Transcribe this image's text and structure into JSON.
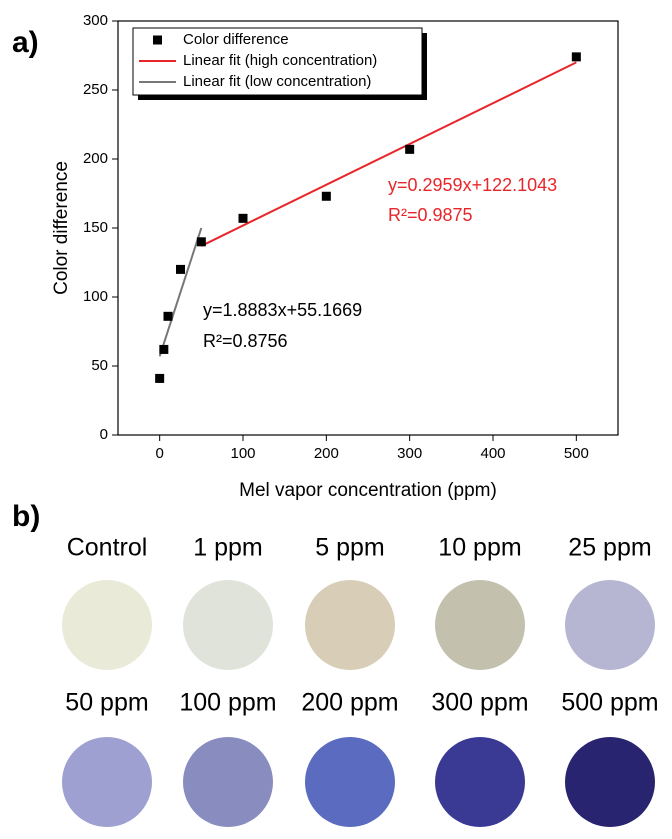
{
  "panel_labels": [
    "a)",
    "b)"
  ],
  "chart_data": {
    "type": "scatter",
    "x_label": "Mel vapor concentration (ppm)",
    "y_label": "Color difference",
    "xlim": [
      -50,
      550
    ],
    "xticks": [
      0,
      100,
      200,
      300,
      400,
      500
    ],
    "ylim": [
      0,
      300
    ],
    "yticks": [
      0,
      50,
      100,
      150,
      200,
      250,
      300
    ],
    "grid": false,
    "legend": "upper left",
    "series": [
      {
        "name": "Color difference",
        "type": "scatter",
        "color": "#000000",
        "x": [
          0,
          5,
          10,
          25,
          50,
          100,
          200,
          300,
          500
        ],
        "values": [
          41,
          62,
          86,
          120,
          140,
          157,
          173,
          207,
          274
        ]
      },
      {
        "name": "Linear fit (high concentration)",
        "type": "line",
        "color": "#e8262a",
        "x": [
          50,
          500
        ],
        "values": [
          137,
          270
        ]
      },
      {
        "name": "Linear fit (low concentration)",
        "type": "line",
        "color": "#777777",
        "x": [
          0,
          50
        ],
        "values": [
          57,
          150
        ]
      }
    ],
    "annotations": [
      {
        "text": "y=0.2959x+122.1043",
        "color": "#e8262a"
      },
      {
        "text": "R²=0.9875",
        "color": "#e8262a"
      },
      {
        "text": "y=1.8883x+55.1669",
        "color": "#000000"
      },
      {
        "text": "R²=0.8756",
        "color": "#000000"
      }
    ]
  },
  "samples": [
    {
      "label": "Control",
      "color": "#e9ead7"
    },
    {
      "label": "1 ppm",
      "color": "#dfe3d9"
    },
    {
      "label": "5 ppm",
      "color": "#d8cdb6"
    },
    {
      "label": "10 ppm",
      "color": "#c3c1ad"
    },
    {
      "label": "25 ppm",
      "color": "#b6b6d3"
    },
    {
      "label": "50 ppm",
      "color": "#9da0d0"
    },
    {
      "label": "100 ppm",
      "color": "#898cbf"
    },
    {
      "label": "200 ppm",
      "color": "#5a6bc0"
    },
    {
      "label": "300 ppm",
      "color": "#3a3a95"
    },
    {
      "label": "500 ppm",
      "color": "#29246f"
    }
  ]
}
